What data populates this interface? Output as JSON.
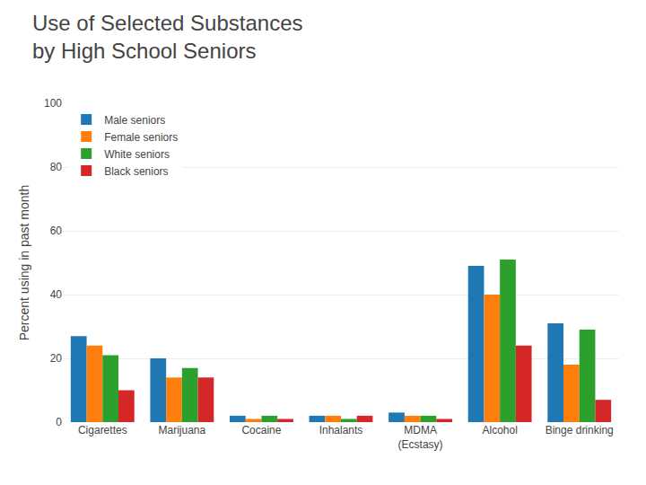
{
  "chart_data": {
    "type": "bar",
    "title": "Use of Selected Substances\nby High School Seniors",
    "ylabel": "Percent using in past month",
    "categories": [
      "Cigarettes",
      "Marijuana",
      "Cocaine",
      "Inhalants",
      "MDMA\n(Ecstasy)",
      "Alcohol",
      "Binge drinking"
    ],
    "series": [
      {
        "name": "Male seniors",
        "values": [
          27,
          20,
          2,
          2,
          3,
          49,
          31
        ]
      },
      {
        "name": "Female seniors",
        "values": [
          24,
          14,
          1,
          2,
          2,
          40,
          18
        ]
      },
      {
        "name": "White seniors",
        "values": [
          21,
          17,
          2,
          1,
          2,
          51,
          29
        ]
      },
      {
        "name": "Black seniors",
        "values": [
          10,
          14,
          1,
          2,
          1,
          24,
          7
        ]
      }
    ],
    "ylim": [
      0,
      100
    ],
    "yticks": [
      0,
      20,
      40,
      60,
      80,
      100
    ],
    "grid": true,
    "legend": "upper left"
  }
}
